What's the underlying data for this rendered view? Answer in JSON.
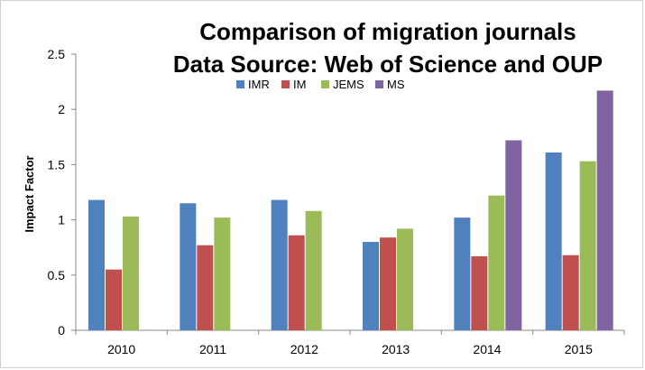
{
  "chart_data": {
    "type": "bar",
    "title": "Comparison of migration journals",
    "subtitle": "Data Source: Web of Science and OUP",
    "xlabel": "",
    "ylabel": "Impact Factor",
    "ylim": [
      0,
      2.5
    ],
    "yticks": [
      "0",
      "0.5",
      "1",
      "1.5",
      "2",
      "2.5"
    ],
    "categories": [
      "2010",
      "2011",
      "2012",
      "2013",
      "2014",
      "2015"
    ],
    "legend_position": "top",
    "grid": false,
    "series": [
      {
        "name": "IMR",
        "color": "#4f81bd",
        "values": [
          1.18,
          1.15,
          1.18,
          0.8,
          1.02,
          1.61
        ]
      },
      {
        "name": "IM",
        "color": "#c0504d",
        "values": [
          0.55,
          0.77,
          0.86,
          0.84,
          0.67,
          0.68
        ]
      },
      {
        "name": "JEMS",
        "color": "#9bbb59",
        "values": [
          1.03,
          1.02,
          1.08,
          0.92,
          1.22,
          1.53
        ]
      },
      {
        "name": "MS",
        "color": "#8064a2",
        "values": [
          null,
          null,
          null,
          null,
          1.72,
          2.17
        ]
      }
    ]
  }
}
